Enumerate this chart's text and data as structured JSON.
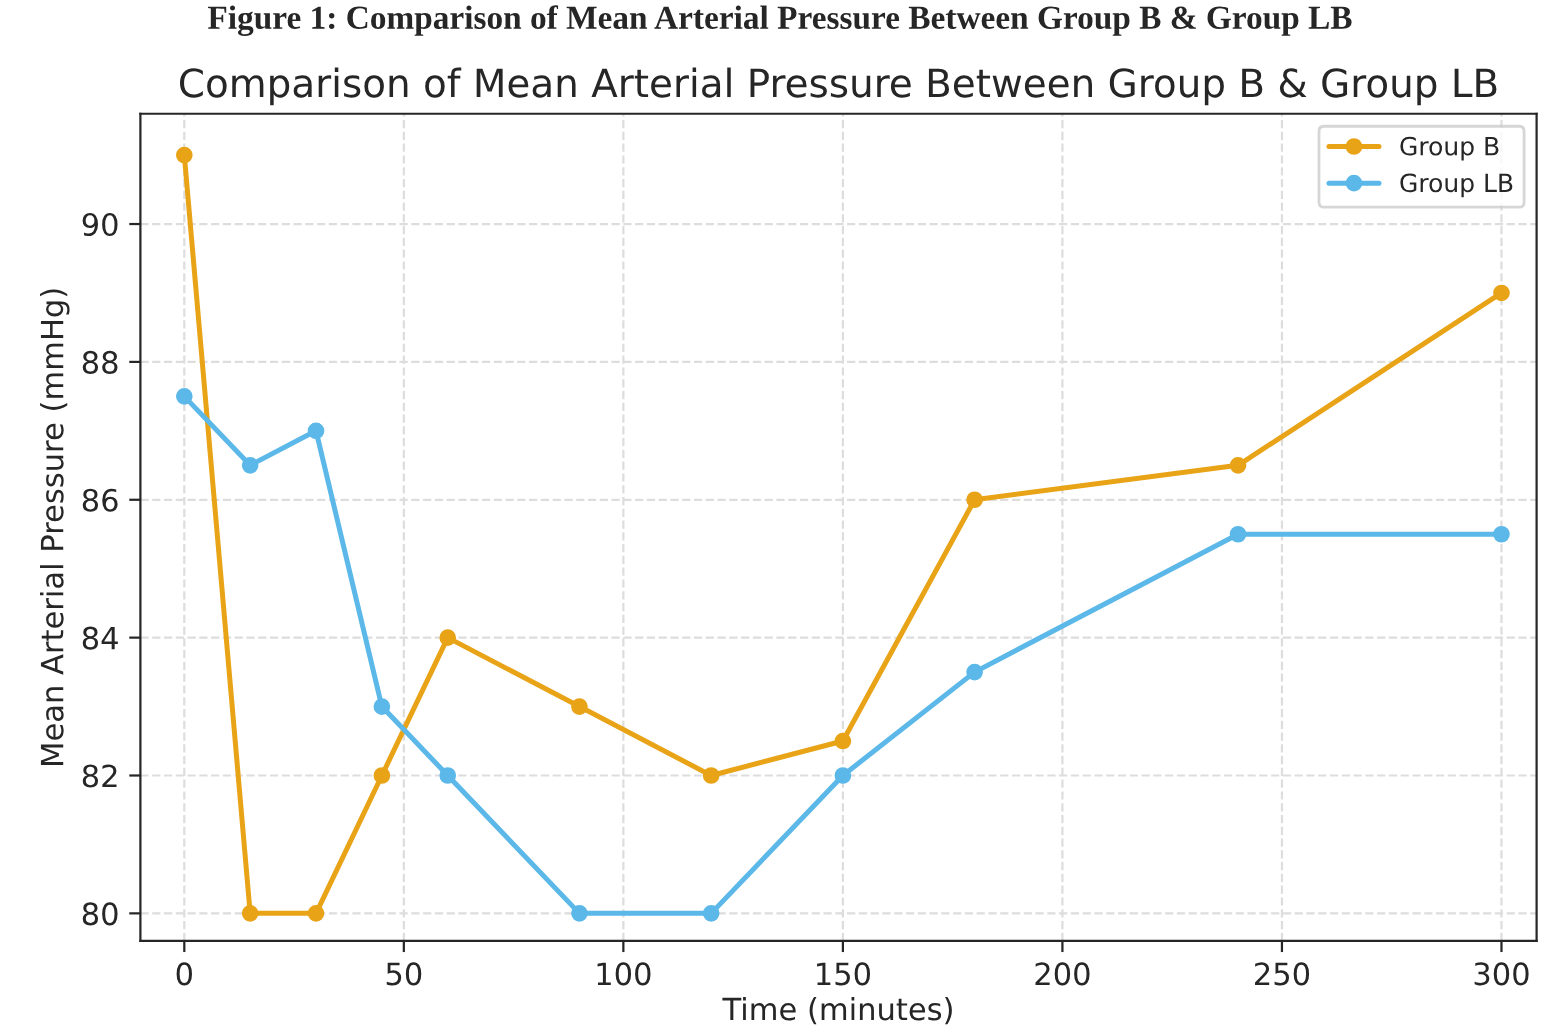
{
  "chart_data": {
    "type": "line",
    "title": "Comparison of Mean Arterial Pressure Between Group B & Group LB",
    "annotations": [
      "Figure 1: Comparison of Mean Arterial Pressure Between Group B & Group LB"
    ],
    "xlabel": "Time (minutes)",
    "ylabel": "Mean Arterial Pressure (mmHg)",
    "x": [
      0,
      15,
      30,
      45,
      60,
      90,
      120,
      150,
      180,
      240,
      300
    ],
    "series": [
      {
        "name": "Group B",
        "color": "#e8a317",
        "values": [
          91,
          80,
          80,
          82,
          84,
          83,
          82,
          82.5,
          86,
          86.5,
          89
        ]
      },
      {
        "name": "Group LB",
        "color": "#5bb8e8",
        "values": [
          87.5,
          86.5,
          87,
          83,
          82,
          80,
          80,
          82,
          83.5,
          85.5,
          85.5
        ]
      }
    ],
    "xlim": [
      -10,
      308
    ],
    "xticks": [
      0,
      50,
      100,
      150,
      200,
      250,
      300
    ],
    "ylim": [
      79.6,
      91.6
    ],
    "yticks": [
      80,
      82,
      84,
      86,
      88,
      90
    ],
    "grid": true,
    "legend": "top right",
    "marker": "circle",
    "line_style": "solid"
  }
}
